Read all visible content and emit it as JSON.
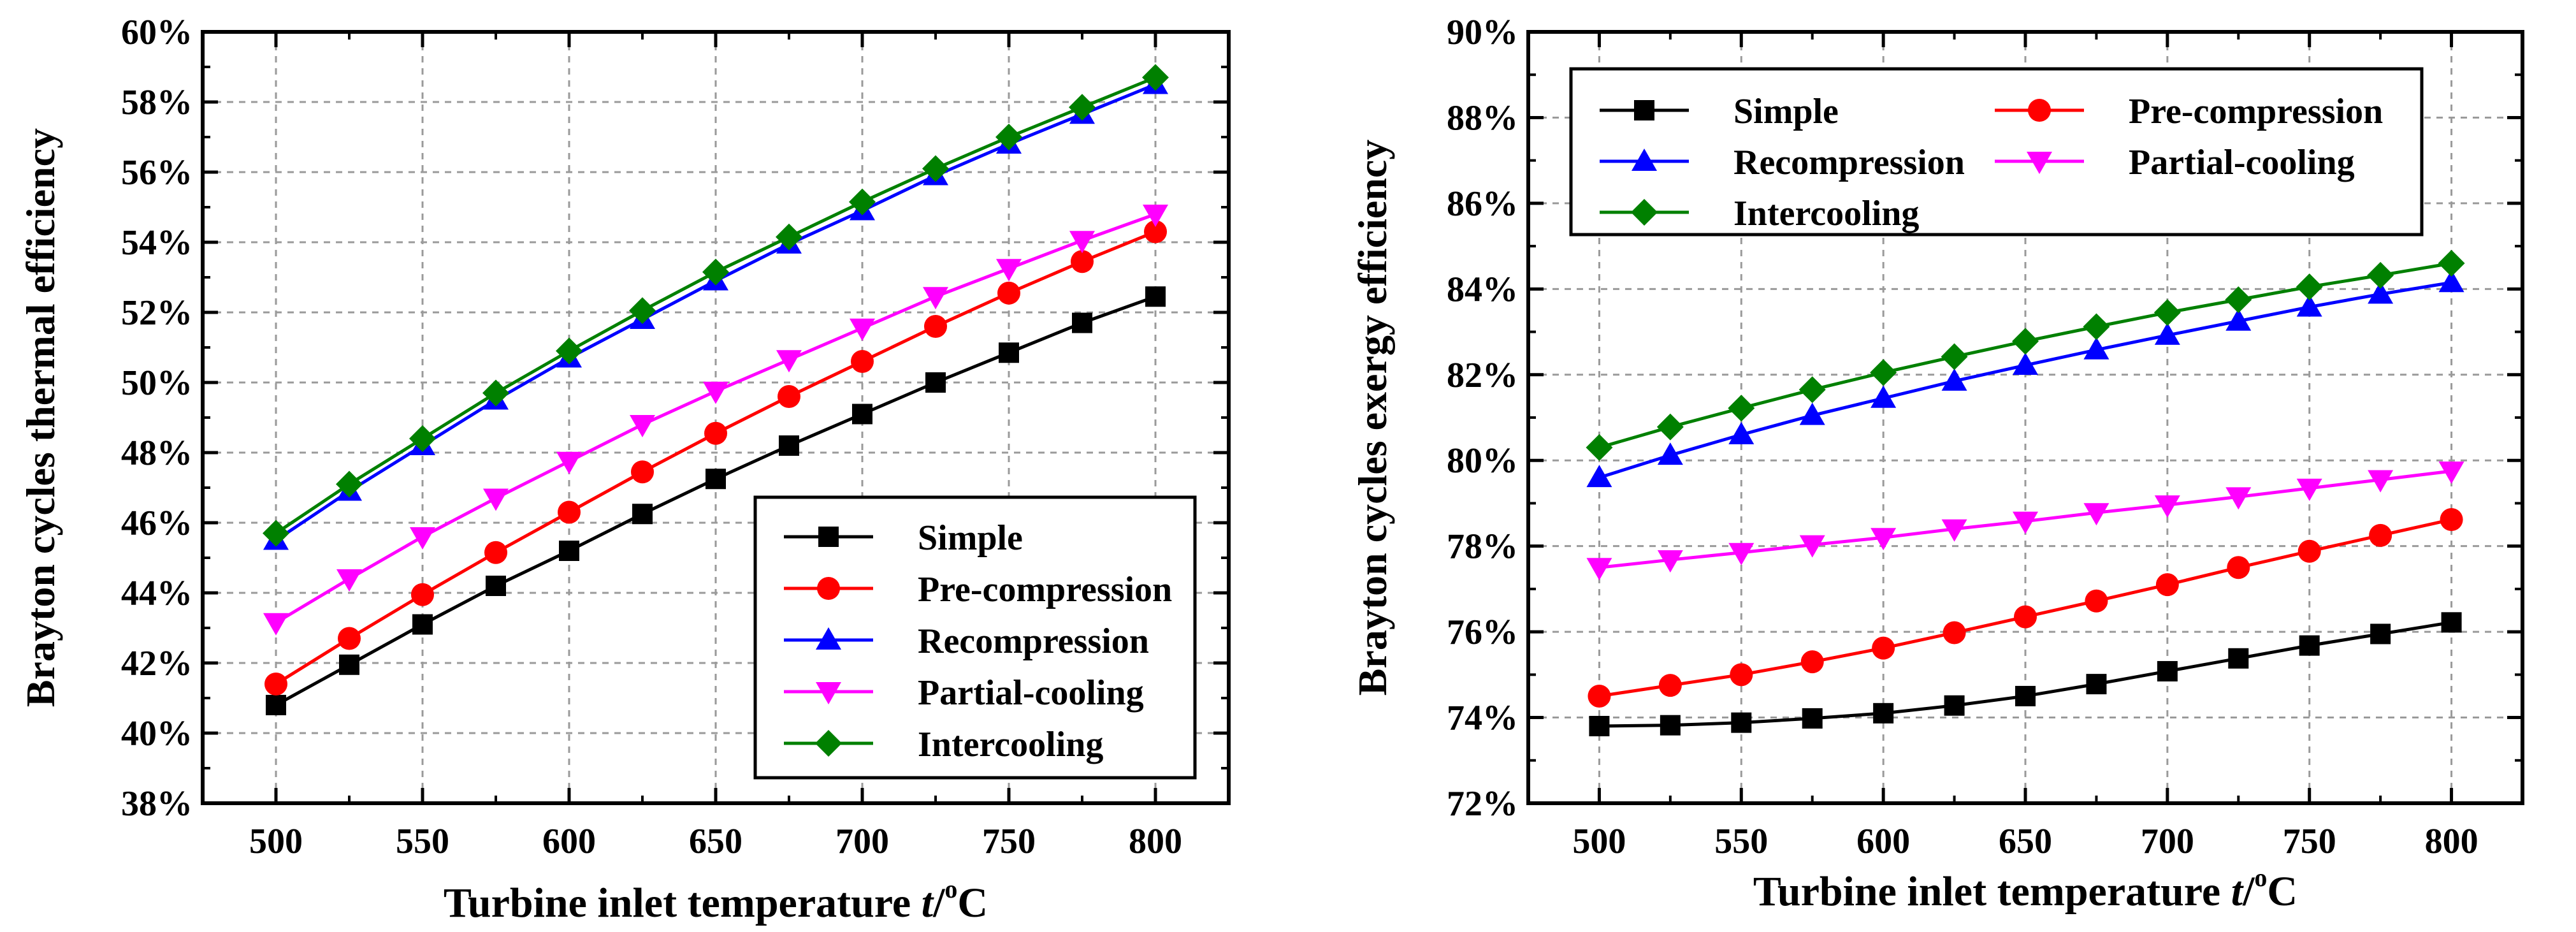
{
  "chart_data": [
    {
      "type": "line",
      "id": "thermal",
      "ylabel": "Brayton cycles thermal efficiency",
      "xlabel_main": "Turbine inlet temperature ",
      "xlabel_var": "t",
      "xlabel_unit_sep": "/",
      "xlabel_deg": "o",
      "xlabel_unit": "C",
      "xlim": [
        475,
        825
      ],
      "ylim": [
        38,
        60
      ],
      "x_ticks": [
        500,
        550,
        600,
        650,
        700,
        750,
        800
      ],
      "x_tick_labels": [
        "500",
        "550",
        "600",
        "650",
        "700",
        "750",
        "800"
      ],
      "y_ticks": [
        38,
        40,
        42,
        44,
        46,
        48,
        50,
        52,
        54,
        56,
        58,
        60
      ],
      "y_tick_labels": [
        "38%",
        "40%",
        "42%",
        "44%",
        "46%",
        "48%",
        "50%",
        "52%",
        "54%",
        "56%",
        "58%",
        "60%"
      ],
      "grid": true,
      "legend_position": "bottom-right",
      "x": [
        500,
        525,
        550,
        575,
        600,
        625,
        650,
        675,
        700,
        725,
        750,
        775,
        800
      ],
      "series": [
        {
          "name": "Simple",
          "color": "#000000",
          "marker": "square",
          "values": [
            40.8,
            41.95,
            43.1,
            44.2,
            45.2,
            46.25,
            47.25,
            48.2,
            49.1,
            50.0,
            50.85,
            51.7,
            52.45
          ]
        },
        {
          "name": "Pre-compression",
          "color": "#ff0000",
          "marker": "circle",
          "values": [
            41.4,
            42.7,
            43.95,
            45.15,
            46.3,
            47.45,
            48.55,
            49.6,
            50.6,
            51.6,
            52.55,
            53.45,
            54.3
          ]
        },
        {
          "name": "Recompression",
          "color": "#0000ff",
          "marker": "triangle-up",
          "values": [
            45.5,
            46.9,
            48.2,
            49.5,
            50.7,
            51.8,
            52.9,
            53.95,
            54.9,
            55.9,
            56.8,
            57.65,
            58.5
          ]
        },
        {
          "name": "Partial-cooling",
          "color": "#ff00ff",
          "marker": "triangle-down",
          "values": [
            43.15,
            44.4,
            45.6,
            46.7,
            47.75,
            48.8,
            49.75,
            50.65,
            51.55,
            52.45,
            53.25,
            54.05,
            54.8
          ]
        },
        {
          "name": "Intercooling",
          "color": "#008000",
          "marker": "diamond",
          "values": [
            45.7,
            47.1,
            48.4,
            49.7,
            50.9,
            52.05,
            53.15,
            54.15,
            55.15,
            56.1,
            57.0,
            57.85,
            58.7
          ]
        }
      ]
    },
    {
      "type": "line",
      "id": "exergy",
      "ylabel": "Brayton cycles exergy efficiency",
      "xlabel_main": "Turbine inlet temperature ",
      "xlabel_var": "t",
      "xlabel_unit_sep": "/",
      "xlabel_deg": "o",
      "xlabel_unit": "C",
      "xlim": [
        475,
        825
      ],
      "ylim": [
        72,
        90
      ],
      "x_ticks": [
        500,
        550,
        600,
        650,
        700,
        750,
        800
      ],
      "x_tick_labels": [
        "500",
        "550",
        "600",
        "650",
        "700",
        "750",
        "800"
      ],
      "y_ticks": [
        72,
        74,
        76,
        78,
        80,
        82,
        84,
        86,
        88,
        90
      ],
      "y_tick_labels": [
        "72%",
        "74%",
        "76%",
        "78%",
        "80%",
        "82%",
        "84%",
        "86%",
        "88%",
        "90%"
      ],
      "grid": true,
      "legend_position": "top-left",
      "legend_columns": 2,
      "x": [
        500,
        525,
        550,
        575,
        600,
        625,
        650,
        675,
        700,
        725,
        750,
        775,
        800
      ],
      "series": [
        {
          "name": "Simple",
          "color": "#000000",
          "marker": "square",
          "values": [
            73.8,
            73.82,
            73.88,
            73.98,
            74.1,
            74.28,
            74.5,
            74.78,
            75.08,
            75.38,
            75.68,
            75.95,
            76.22
          ]
        },
        {
          "name": "Pre-compression",
          "color": "#ff0000",
          "marker": "circle",
          "values": [
            74.5,
            74.75,
            75.0,
            75.3,
            75.62,
            75.98,
            76.35,
            76.72,
            77.1,
            77.5,
            77.88,
            78.25,
            78.62
          ]
        },
        {
          "name": "Recompression",
          "color": "#0000ff",
          "marker": "triangle-up",
          "values": [
            79.6,
            80.12,
            80.6,
            81.05,
            81.45,
            81.85,
            82.22,
            82.58,
            82.92,
            83.25,
            83.58,
            83.88,
            84.15
          ]
        },
        {
          "name": "Partial-cooling",
          "color": "#ff00ff",
          "marker": "triangle-down",
          "values": [
            77.5,
            77.68,
            77.85,
            78.03,
            78.2,
            78.4,
            78.58,
            78.78,
            78.96,
            79.15,
            79.35,
            79.55,
            79.75
          ]
        },
        {
          "name": "Intercooling",
          "color": "#008000",
          "marker": "diamond",
          "values": [
            80.3,
            80.78,
            81.22,
            81.65,
            82.05,
            82.42,
            82.78,
            83.12,
            83.45,
            83.75,
            84.05,
            84.32,
            84.6
          ]
        }
      ]
    }
  ]
}
